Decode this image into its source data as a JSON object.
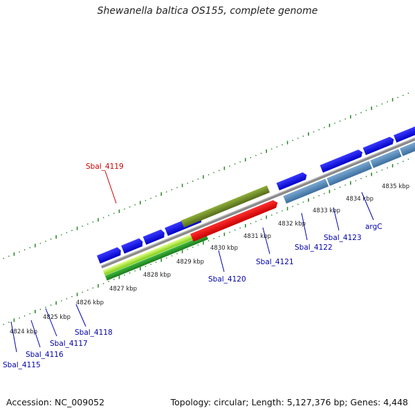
{
  "title": "Shewanella baltica OS155, complete genome",
  "footer": {
    "accession": "Accession: NC_009052",
    "topology": "Topology: circular; Length: 5,127,376 bp; Genes: 4,448"
  },
  "kbp_labels": [
    "4824 kbp",
    "4825 kbp",
    "4826 kbp",
    "4827 kbp",
    "4828 kbp",
    "4829 kbp",
    "4830 kbp",
    "4831 kbp",
    "4832 kbp",
    "4833 kbp",
    "4834 kbp",
    "4835 kbp"
  ],
  "gene_labels": [
    {
      "name": "Sbal_4115",
      "color": "#0000aa"
    },
    {
      "name": "Sbal_4116",
      "color": "#0000aa"
    },
    {
      "name": "Sbal_4117",
      "color": "#0000aa"
    },
    {
      "name": "Sbal_4118",
      "color": "#0000aa"
    },
    {
      "name": "Sbal_4119",
      "color": "#cc0000"
    },
    {
      "name": "Sbal_4120",
      "color": "#0000aa"
    },
    {
      "name": "Sbal_4121",
      "color": "#0000aa"
    },
    {
      "name": "Sbal_4122",
      "color": "#0000aa"
    },
    {
      "name": "Sbal_4123",
      "color": "#0000aa"
    },
    {
      "name": "argC",
      "color": "#0000aa"
    }
  ],
  "colors": {
    "cds_forward": "#0000ee",
    "cds_reverse": "#4682b4",
    "rrna": "#6b8e23",
    "trna": "#ee0000",
    "other": "#00e5ee",
    "backbone": "#888888",
    "ticks": "#2e8b2e"
  }
}
